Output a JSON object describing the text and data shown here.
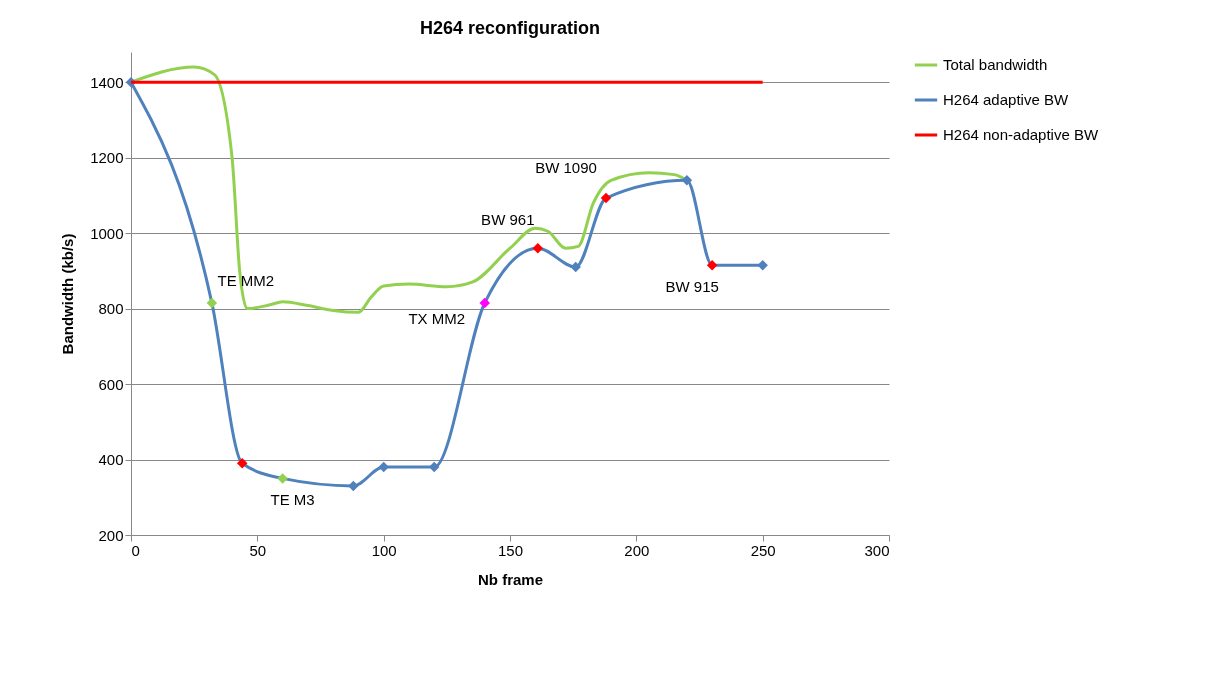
{
  "chart_data": {
    "type": "line",
    "title": "H264 reconfiguration",
    "xlabel": "Nb frame",
    "ylabel": "Bandwidth  (kb/s)",
    "xlim": [
      0,
      300
    ],
    "xticks": [
      0,
      50,
      100,
      150,
      200,
      250,
      300
    ],
    "ylim": [
      200,
      1480
    ],
    "yticks": [
      200,
      400,
      600,
      800,
      1000,
      1200,
      1400
    ],
    "grid": "y",
    "legend": "right",
    "line_style": "solid",
    "series": [
      {
        "name": "Total bandwidth",
        "color": "#92d050",
        "x": [
          0,
          25,
          33,
          40,
          43,
          46,
          55,
          60,
          70,
          80,
          90,
          95,
          100,
          110,
          125,
          135,
          150,
          160,
          165,
          172,
          177,
          183,
          190,
          205,
          215,
          220
        ],
        "values": [
          1400,
          1440,
          1420,
          1200,
          900,
          800,
          810,
          818,
          808,
          795,
          790,
          830,
          860,
          865,
          858,
          870,
          960,
          1013,
          1005,
          960,
          965,
          1080,
          1140,
          1160,
          1155,
          1140
        ]
      },
      {
        "name": "H264 adaptive  BW",
        "color": "#4f81bd",
        "marker": "diamond",
        "x": [
          0,
          32,
          44,
          60,
          88,
          100,
          120,
          140,
          161,
          176,
          188,
          220,
          230,
          250
        ],
        "values": [
          1400,
          815,
          390,
          350,
          330,
          380,
          380,
          815,
          960,
          910,
          1093,
          1140,
          915,
          915
        ],
        "colors": [
          "#4f81bd",
          "#92d050",
          "#ff0000",
          "#92d050",
          "#4f81bd",
          "#4f81bd",
          "#4f81bd",
          "#ff00ff",
          "#ff0000",
          "#4f81bd",
          "#ff0000",
          "#4f81bd",
          "#ff0000",
          "#4f81bd"
        ]
      },
      {
        "name": "H264 non-adaptive  BW",
        "color": "#ff0000",
        "x": [
          0,
          250
        ],
        "values": [
          1400,
          1400
        ]
      }
    ],
    "annotations": [
      {
        "text": "TE MM2",
        "x": 32,
        "y": 815
      },
      {
        "text": "TE M3",
        "x": 60,
        "y": 350
      },
      {
        "text": "TX MM2",
        "x": 140,
        "y": 815
      },
      {
        "text": "BW 961",
        "x": 161,
        "y": 960
      },
      {
        "text": "BW 1090",
        "x": 188,
        "y": 1093
      },
      {
        "text": "BW 915",
        "x": 230,
        "y": 915
      }
    ]
  }
}
